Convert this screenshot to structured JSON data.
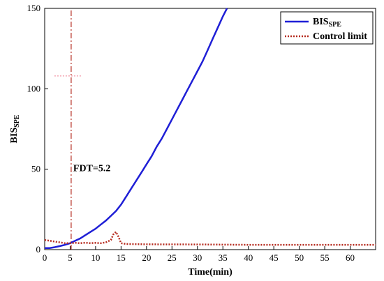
{
  "chart_data": {
    "type": "line",
    "xlabel": "Time(min)",
    "ylabel": {
      "base": "BIS",
      "sub": "SPE"
    },
    "xlim": [
      0,
      65
    ],
    "ylim": [
      0,
      150
    ],
    "x_ticks": [
      "0",
      "5",
      "10",
      "15",
      "20",
      "25",
      "30",
      "35",
      "40",
      "45",
      "50",
      "55",
      "60"
    ],
    "y_ticks": [
      "0",
      "50",
      "100",
      "150"
    ],
    "grid": false,
    "legend_position": "top-right",
    "series": [
      {
        "name": {
          "base": "BIS",
          "sub": "SPE"
        },
        "color": "#1f1fd6",
        "style": "solid",
        "points": [
          [
            0,
            1
          ],
          [
            1,
            1
          ],
          [
            2,
            1.5
          ],
          [
            3,
            2.2
          ],
          [
            4,
            3
          ],
          [
            5,
            4
          ],
          [
            6,
            5.5
          ],
          [
            7,
            7
          ],
          [
            8,
            9
          ],
          [
            9,
            11
          ],
          [
            10,
            13
          ],
          [
            11,
            15.5
          ],
          [
            12,
            18
          ],
          [
            13,
            21
          ],
          [
            14,
            24
          ],
          [
            15,
            28
          ],
          [
            16,
            33
          ],
          [
            17,
            38
          ],
          [
            18,
            43
          ],
          [
            19,
            48
          ],
          [
            20,
            53
          ],
          [
            21,
            58
          ],
          [
            22,
            64
          ],
          [
            23,
            69
          ],
          [
            24,
            75
          ],
          [
            25,
            81
          ],
          [
            26,
            87
          ],
          [
            27,
            93
          ],
          [
            28,
            99
          ],
          [
            29,
            105
          ],
          [
            30,
            111
          ],
          [
            31,
            117
          ],
          [
            32,
            124
          ],
          [
            33,
            131
          ],
          [
            34,
            138
          ],
          [
            35,
            145
          ],
          [
            35.8,
            150
          ]
        ]
      },
      {
        "name": "Control limit",
        "color": "#b52a1e",
        "style": "dotted",
        "points": [
          [
            0,
            6
          ],
          [
            1,
            5.5
          ],
          [
            2,
            5
          ],
          [
            3,
            4.5
          ],
          [
            4,
            4
          ],
          [
            5,
            4
          ],
          [
            6,
            4.2
          ],
          [
            7,
            4
          ],
          [
            8,
            4.3
          ],
          [
            9,
            4
          ],
          [
            10,
            4.2
          ],
          [
            11,
            4
          ],
          [
            12,
            4.5
          ],
          [
            13,
            6
          ],
          [
            13.5,
            9.5
          ],
          [
            14,
            11
          ],
          [
            14.5,
            8
          ],
          [
            15,
            4
          ],
          [
            16,
            3.5
          ],
          [
            20,
            3.3
          ],
          [
            30,
            3.2
          ],
          [
            40,
            3
          ],
          [
            50,
            3
          ],
          [
            60,
            3
          ],
          [
            65,
            3
          ]
        ]
      }
    ],
    "annotation": {
      "text": "FDT=5.2",
      "x": 5.2,
      "y": 47
    }
  }
}
